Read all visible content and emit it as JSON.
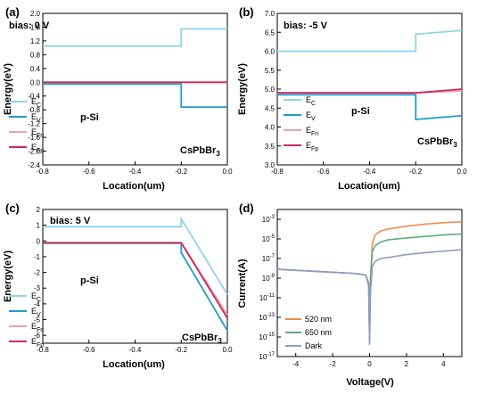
{
  "chart_data": [
    {
      "panel": "(a)",
      "type": "line",
      "annotation": "bias: 0 V",
      "xlabel": "Location(um)",
      "ylabel": "Energy(eV)",
      "xlim": [
        -0.8,
        0.0
      ],
      "ylim": [
        -2.4,
        2.0
      ],
      "xticks": [
        "-0.8",
        "-0.6",
        "-0.4",
        "-0.2",
        "0.0"
      ],
      "yticks": [
        "-2.4",
        "-2.0",
        "-1.6",
        "-1.2",
        "-0.8",
        "-0.4",
        "0.0",
        "0.4",
        "0.8",
        "1.2",
        "1.6",
        "2.0"
      ],
      "region_labels": [
        "p-Si",
        "CsPbBr3"
      ],
      "legend": [
        "E_C",
        "E_V",
        "E_Fn",
        "E_Fp"
      ],
      "series": [
        {
          "name": "E_C",
          "color": "#8fd3ea",
          "x": [
            -0.8,
            -0.2,
            -0.2,
            0.0
          ],
          "y": [
            1.05,
            1.05,
            1.55,
            1.55
          ]
        },
        {
          "name": "E_V",
          "color": "#1e9ec7",
          "x": [
            -0.8,
            -0.2,
            -0.2,
            0.0
          ],
          "y": [
            -0.05,
            -0.05,
            -0.72,
            -0.72
          ]
        },
        {
          "name": "E_Fn",
          "color": "#f0a0b4",
          "x": [
            -0.8,
            0.0
          ],
          "y": [
            0.0,
            0.0
          ]
        },
        {
          "name": "E_Fp",
          "color": "#cc2a55",
          "x": [
            -0.8,
            0.0
          ],
          "y": [
            0.0,
            0.0
          ]
        }
      ]
    },
    {
      "panel": "(b)",
      "type": "line",
      "annotation": "bias: -5 V",
      "xlabel": "Location(um)",
      "ylabel": "Energy(eV)",
      "xlim": [
        -0.8,
        0.0
      ],
      "ylim": [
        3.0,
        7.0
      ],
      "xticks": [
        "-0.8",
        "-0.6",
        "-0.4",
        "-0.2",
        "0.0"
      ],
      "yticks": [
        "3.0",
        "3.5",
        "4.0",
        "4.5",
        "5.0",
        "5.5",
        "6.0",
        "6.5",
        "7.0"
      ],
      "region_labels": [
        "p-Si",
        "CsPbBr3"
      ],
      "legend": [
        "E_C",
        "E_V",
        "E_Fn",
        "E_Fp"
      ],
      "series": [
        {
          "name": "E_C",
          "color": "#8fd3ea",
          "x": [
            -0.8,
            -0.2,
            -0.2,
            0.0
          ],
          "y": [
            6.0,
            6.0,
            6.45,
            6.55
          ]
        },
        {
          "name": "E_V",
          "color": "#1e9ec7",
          "x": [
            -0.8,
            -0.2,
            -0.2,
            0.0
          ],
          "y": [
            4.85,
            4.85,
            4.2,
            4.3
          ]
        },
        {
          "name": "E_Fn",
          "color": "#f0a0b4",
          "x": [
            -0.8,
            -0.2,
            0.0
          ],
          "y": [
            4.9,
            4.9,
            4.95
          ]
        },
        {
          "name": "E_Fp",
          "color": "#cc2a55",
          "x": [
            -0.8,
            -0.2,
            0.0
          ],
          "y": [
            4.9,
            4.9,
            5.0
          ]
        }
      ]
    },
    {
      "panel": "(c)",
      "type": "line",
      "annotation": "bias: 5 V",
      "xlabel": "Location(um)",
      "ylabel": "Energy(eV)",
      "xlim": [
        -0.8,
        0.0
      ],
      "ylim": [
        -6.5,
        2.0
      ],
      "xticks": [
        "-0.8",
        "-0.6",
        "-0.4",
        "-0.2",
        "0.0"
      ],
      "yticks": [
        "-6",
        "-5",
        "-4",
        "-3",
        "-2",
        "-1",
        "0",
        "1",
        "2"
      ],
      "region_labels": [
        "p-Si",
        "CsPbBr3"
      ],
      "legend": [
        "E_C",
        "E_V",
        "E_Fn",
        "E_Fp"
      ],
      "series": [
        {
          "name": "E_C",
          "color": "#8fd3ea",
          "x": [
            -0.8,
            -0.2,
            -0.2,
            0.0
          ],
          "y": [
            0.9,
            0.9,
            1.4,
            -3.4
          ]
        },
        {
          "name": "E_V",
          "color": "#1e9ec7",
          "x": [
            -0.8,
            -0.2,
            -0.2,
            0.0
          ],
          "y": [
            -0.15,
            -0.15,
            -0.75,
            -5.7
          ]
        },
        {
          "name": "E_Fn",
          "color": "#f0a0b4",
          "x": [
            -0.8,
            -0.2,
            0.0
          ],
          "y": [
            -0.1,
            -0.1,
            -4.7
          ]
        },
        {
          "name": "E_Fp",
          "color": "#cc2a55",
          "x": [
            -0.8,
            -0.2,
            0.0
          ],
          "y": [
            -0.12,
            -0.12,
            -4.9
          ]
        }
      ]
    },
    {
      "panel": "(d)",
      "type": "line",
      "xlabel": "Voltage(V)",
      "ylabel": "Current(A)",
      "xlim": [
        -5,
        5
      ],
      "ylog_exp_range": [
        -17,
        -2
      ],
      "xticks": [
        "-4",
        "-2",
        "0",
        "2",
        "4"
      ],
      "yticks": [
        "10-3",
        "10-5",
        "10-7",
        "10-9",
        "10-11",
        "10-13",
        "10-15",
        "10-17"
      ],
      "legend": [
        "520 nm",
        "650 nm",
        "Dark"
      ],
      "series": [
        {
          "name": "520 nm",
          "color": "#f28a4c",
          "V": [
            -5,
            -4,
            -3,
            -2,
            -1,
            -0.5,
            -0.2,
            -0.05,
            0.0,
            0.05,
            0.15,
            0.3,
            0.6,
            1,
            2,
            3,
            4,
            5
          ],
          "log10_I": [
            -8.1,
            -8.2,
            -8.3,
            -8.4,
            -8.5,
            -8.6,
            -8.7,
            -9.5,
            -15.5,
            -9.0,
            -5.5,
            -4.6,
            -4.2,
            -4.0,
            -3.7,
            -3.5,
            -3.35,
            -3.25
          ]
        },
        {
          "name": "650 nm",
          "color": "#5cae7e",
          "V": [
            -5,
            -4,
            -3,
            -2,
            -1,
            -0.5,
            -0.2,
            -0.05,
            0.0,
            0.05,
            0.15,
            0.3,
            0.6,
            1,
            2,
            3,
            4,
            5
          ],
          "log10_I": [
            -8.1,
            -8.2,
            -8.3,
            -8.4,
            -8.5,
            -8.6,
            -8.7,
            -9.6,
            -15.5,
            -9.3,
            -6.3,
            -5.7,
            -5.3,
            -5.1,
            -4.9,
            -4.75,
            -4.6,
            -4.5
          ]
        },
        {
          "name": "Dark",
          "color": "#8e9ac8",
          "V": [
            -5,
            -4,
            -3,
            -2,
            -1,
            -0.5,
            -0.2,
            -0.05,
            0.0,
            0.05,
            0.15,
            0.3,
            0.6,
            1,
            2,
            3,
            4,
            5
          ],
          "log10_I": [
            -8.1,
            -8.2,
            -8.3,
            -8.4,
            -8.5,
            -8.6,
            -8.7,
            -9.8,
            -15.8,
            -10.5,
            -7.8,
            -7.3,
            -7.0,
            -6.9,
            -6.6,
            -6.4,
            -6.25,
            -6.1
          ]
        }
      ]
    }
  ]
}
